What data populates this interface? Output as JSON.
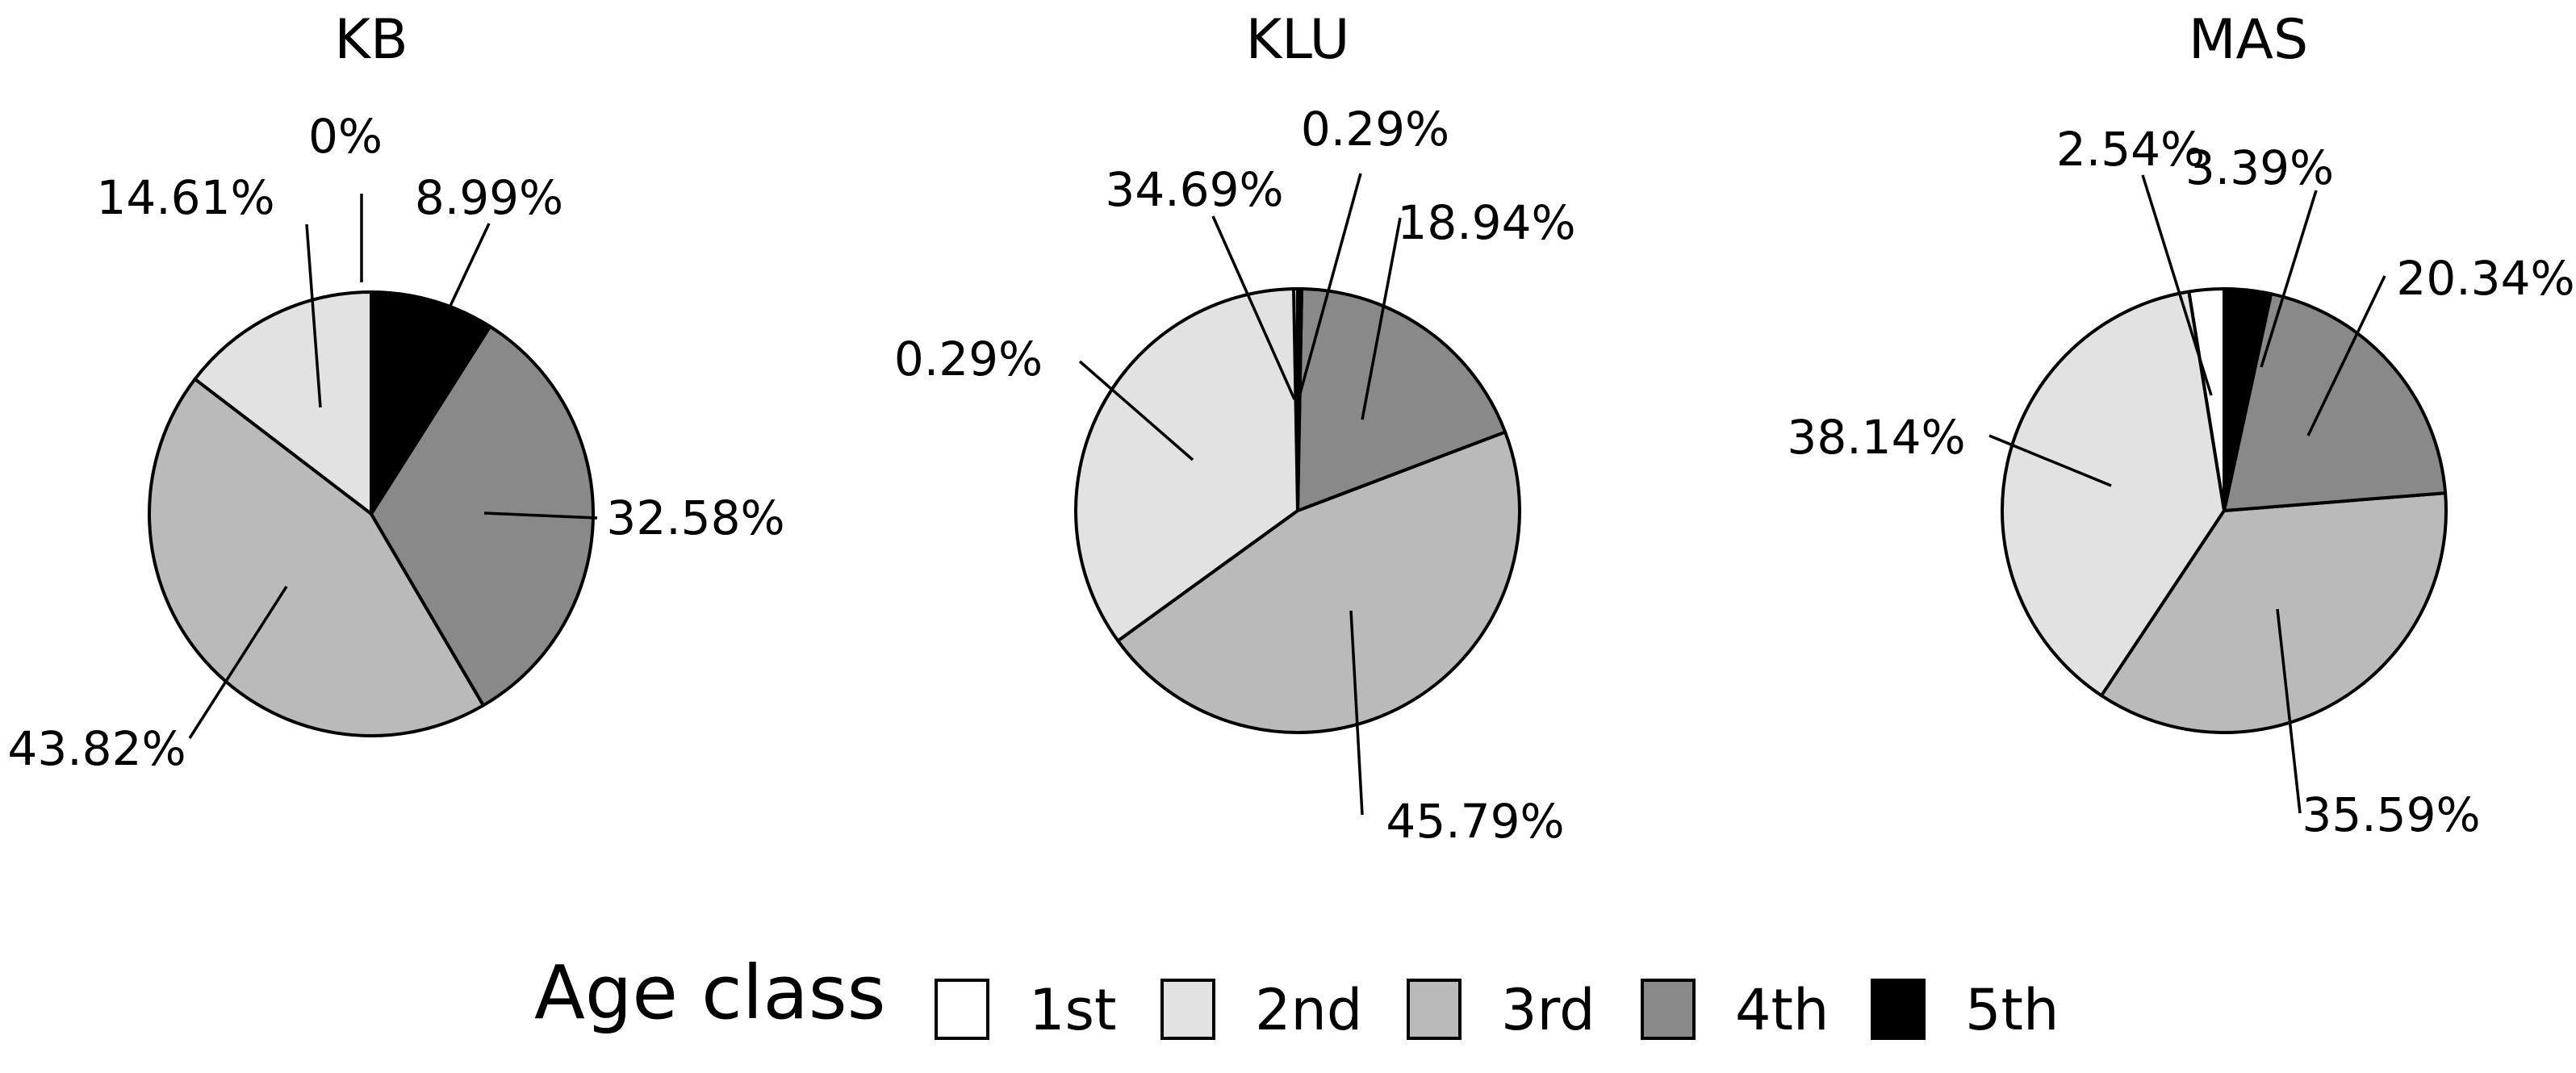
{
  "chart_data": [
    {
      "type": "pie",
      "title": "KB",
      "categories": [
        "1st",
        "2nd",
        "3rd",
        "4th",
        "5th"
      ],
      "values": [
        0,
        14.61,
        43.82,
        32.58,
        8.99
      ],
      "labels": [
        "0%",
        "14.61%",
        "43.82%",
        "32.58%",
        "8.99%"
      ]
    },
    {
      "type": "pie",
      "title": "KLU",
      "categories": [
        "1st",
        "2nd",
        "3rd",
        "4th",
        "5th"
      ],
      "values": [
        0.29,
        34.69,
        45.79,
        18.94,
        0.29
      ],
      "labels": [
        "0.29%",
        "34.69%",
        "45.79%",
        "18.94%",
        "0.29%"
      ]
    },
    {
      "type": "pie",
      "title": "MAS",
      "categories": [
        "1st",
        "2nd",
        "3rd",
        "4th",
        "5th"
      ],
      "values": [
        2.54,
        38.14,
        35.59,
        20.34,
        3.39
      ],
      "labels": [
        "2.54%",
        "38.14%",
        "35.59%",
        "20.34%",
        "3.39%"
      ]
    }
  ],
  "legend": {
    "title": "Age class",
    "placement": "bottom",
    "items": [
      {
        "label": "1st",
        "color": "#ffffff"
      },
      {
        "label": "2nd",
        "color": "#e2e2e2"
      },
      {
        "label": "3rd",
        "color": "#bababa"
      },
      {
        "label": "4th",
        "color": "#898989"
      },
      {
        "label": "5th",
        "color": "#000000"
      }
    ]
  }
}
